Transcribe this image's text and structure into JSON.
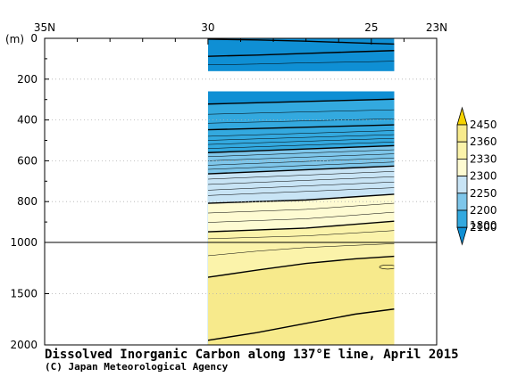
{
  "chart_data": {
    "type": "contour_section",
    "title": "Dissolved Inorganic Carbon along 137°E line, April 2015",
    "credit": "(C) Japan Meteorological Agency",
    "x_axis": {
      "label": "",
      "unit": "latitude",
      "range": [
        35,
        23
      ],
      "ticks": [
        {
          "value": 35,
          "label": "35N"
        },
        {
          "value": 30,
          "label": "30"
        },
        {
          "value": 25,
          "label": "25"
        },
        {
          "value": 23,
          "label": "23N"
        }
      ]
    },
    "y_axis": {
      "unit_label": "(m)",
      "range": [
        0,
        2000
      ],
      "break_depth": 1000,
      "ticks": [
        {
          "value": 0,
          "label": "0"
        },
        {
          "value": 200,
          "label": "200"
        },
        {
          "value": 400,
          "label": "400"
        },
        {
          "value": 600,
          "label": "600"
        },
        {
          "value": 800,
          "label": "800"
        },
        {
          "value": 1000,
          "label": "1000"
        },
        {
          "value": 1500,
          "label": "1500"
        },
        {
          "value": 2000,
          "label": "2000"
        }
      ]
    },
    "data_extent": {
      "lat_north": 30,
      "lat_south": 24.3
    },
    "data_gaps": [
      [
        160,
        260
      ]
    ],
    "colorbar": {
      "levels": [
        {
          "label": "2450",
          "color": "#f5d200"
        },
        {
          "label": "2360",
          "color": "#f7ea8c"
        },
        {
          "label": "2330",
          "color": "#fbf3aa"
        },
        {
          "label": "2300",
          "color": "#fefbd2"
        },
        {
          "label": "2250",
          "color": "#c8e4f5"
        },
        {
          "label": "2200",
          "color": "#7ec6ea"
        },
        {
          "label": "2100",
          "color": "#33a9df"
        },
        {
          "label": "1800",
          "color": "#0f8fd4"
        }
      ]
    },
    "contours": [
      {
        "value": 1950,
        "bold": true,
        "points": [
          [
            30,
            4
          ],
          [
            28.5,
            8
          ],
          [
            27,
            14
          ],
          [
            25.5,
            22
          ],
          [
            24.3,
            28
          ]
        ]
      },
      {
        "value": 2000,
        "bold": true,
        "points": [
          [
            30,
            88
          ],
          [
            28.5,
            82
          ],
          [
            27,
            74
          ],
          [
            25.5,
            66
          ],
          [
            24.3,
            60
          ]
        ]
      },
      {
        "value": 2050,
        "bold": false,
        "points": [
          [
            30,
            130
          ],
          [
            28.5,
            126
          ],
          [
            27,
            120
          ],
          [
            25.5,
            116
          ],
          [
            24.3,
            112
          ]
        ]
      },
      {
        "value": 2100,
        "bold": true,
        "points": [
          [
            30,
            322
          ],
          [
            24.3,
            298
          ]
        ]
      },
      {
        "value": 2120,
        "bold": false,
        "points": [
          [
            30,
            372
          ],
          [
            24.3,
            350
          ]
        ]
      },
      {
        "value": 2140,
        "bold": false,
        "points": [
          [
            30,
            416
          ],
          [
            24.3,
            394
          ]
        ]
      },
      {
        "value": 2150,
        "bold": true,
        "points": [
          [
            30,
            448
          ],
          [
            24.3,
            424
          ]
        ]
      },
      {
        "value": 2160,
        "bold": false,
        "points": [
          [
            30,
            480
          ],
          [
            24.3,
            452
          ]
        ]
      },
      {
        "value": 2170,
        "bold": false,
        "points": [
          [
            30,
            500
          ],
          [
            24.3,
            472
          ]
        ]
      },
      {
        "value": 2180,
        "bold": false,
        "points": [
          [
            30,
            520
          ],
          [
            24.3,
            490
          ]
        ]
      },
      {
        "value": 2190,
        "bold": false,
        "points": [
          [
            30,
            540
          ],
          [
            24.3,
            508
          ]
        ]
      },
      {
        "value": 2200,
        "bold": true,
        "points": [
          [
            30,
            560
          ],
          [
            24.3,
            526
          ]
        ]
      },
      {
        "value": 2210,
        "bold": false,
        "points": [
          [
            30,
            580
          ],
          [
            24.3,
            546
          ]
        ]
      },
      {
        "value": 2220,
        "bold": false,
        "points": [
          [
            30,
            600
          ],
          [
            24.3,
            566
          ]
        ]
      },
      {
        "value": 2230,
        "bold": false,
        "points": [
          [
            30,
            622
          ],
          [
            24.3,
            586
          ]
        ]
      },
      {
        "value": 2240,
        "bold": false,
        "points": [
          [
            30,
            642
          ],
          [
            24.3,
            606
          ]
        ]
      },
      {
        "value": 2250,
        "bold": true,
        "points": [
          [
            30,
            664
          ],
          [
            24.3,
            626
          ]
        ]
      },
      {
        "value": 2260,
        "bold": false,
        "points": [
          [
            30,
            690
          ],
          [
            24.3,
            652
          ]
        ]
      },
      {
        "value": 2270,
        "bold": false,
        "points": [
          [
            30,
            716
          ],
          [
            24.3,
            678
          ]
        ]
      },
      {
        "value": 2280,
        "bold": false,
        "points": [
          [
            30,
            744
          ],
          [
            24.3,
            704
          ]
        ]
      },
      {
        "value": 2290,
        "bold": false,
        "points": [
          [
            30,
            770
          ],
          [
            24.3,
            732
          ]
        ]
      },
      {
        "value": 2300,
        "bold": true,
        "points": [
          [
            30,
            808
          ],
          [
            27,
            792
          ],
          [
            24.3,
            764
          ]
        ]
      },
      {
        "value": 2310,
        "bold": false,
        "points": [
          [
            30,
            856
          ],
          [
            27,
            838
          ],
          [
            24.3,
            808
          ]
        ]
      },
      {
        "value": 2320,
        "bold": false,
        "points": [
          [
            30,
            902
          ],
          [
            27,
            884
          ],
          [
            24.3,
            852
          ]
        ]
      },
      {
        "value": 2330,
        "bold": true,
        "points": [
          [
            30,
            948
          ],
          [
            27,
            930
          ],
          [
            24.3,
            896
          ]
        ]
      },
      {
        "value": 2340,
        "bold": false,
        "points": [
          [
            30,
            982
          ],
          [
            27,
            968
          ],
          [
            24.3,
            942
          ]
        ]
      },
      {
        "value": 2350,
        "bold": false,
        "points": [
          [
            30,
            1130
          ],
          [
            28.5,
            1085
          ],
          [
            27,
            1050
          ],
          [
            25.5,
            1028
          ],
          [
            24.3,
            1012
          ]
        ]
      },
      {
        "value": 2360,
        "bold": true,
        "points": [
          [
            30,
            1340
          ],
          [
            28.5,
            1270
          ],
          [
            27,
            1205
          ],
          [
            25.5,
            1160
          ],
          [
            24.3,
            1135
          ]
        ]
      },
      {
        "value": 2370,
        "bold": true,
        "points": [
          [
            30,
            1955
          ],
          [
            28.5,
            1880
          ],
          [
            27,
            1790
          ],
          [
            25.5,
            1700
          ],
          [
            24.3,
            1650
          ]
        ]
      }
    ],
    "closed_contours": [
      {
        "value": 2370,
        "bold": false,
        "center": [
          24.5,
          1240
        ],
        "radius_lat": 0.25,
        "radius_depth": 20
      }
    ]
  }
}
